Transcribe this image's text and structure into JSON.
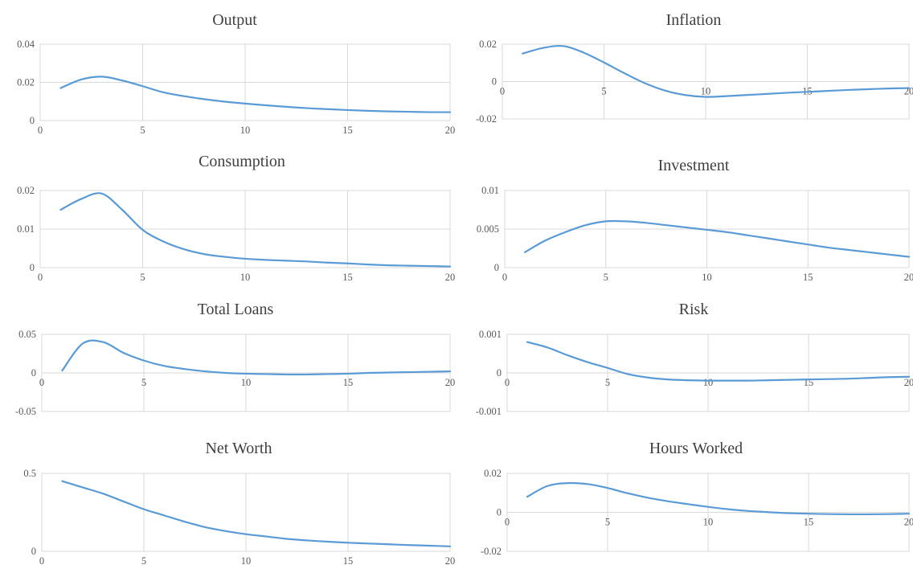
{
  "chart_data": [
    {
      "type": "line",
      "title": "Output",
      "xlim": [
        0,
        20
      ],
      "ylim": [
        0,
        0.04
      ],
      "xticks": [
        "0",
        "5",
        "10",
        "15",
        "20"
      ],
      "yticks": [
        "0",
        "0.02",
        "0.04"
      ],
      "grid": true,
      "x": [
        1,
        2,
        3,
        4,
        5,
        6,
        7,
        8,
        9,
        10,
        11,
        12,
        13,
        14,
        15,
        16,
        17,
        18,
        19,
        20
      ],
      "series": [
        {
          "values": [
            0.017,
            0.0215,
            0.023,
            0.021,
            0.018,
            0.0148,
            0.0128,
            0.0112,
            0.0099,
            0.0089,
            0.008,
            0.0072,
            0.0065,
            0.006,
            0.0055,
            0.0051,
            0.0048,
            0.0046,
            0.0044,
            0.0044
          ]
        }
      ]
    },
    {
      "type": "line",
      "title": "Inflation",
      "xlim": [
        0,
        20
      ],
      "ylim": [
        -0.02,
        0.02
      ],
      "xticks": [
        "0",
        "5",
        "10",
        "15",
        "20"
      ],
      "yticks": [
        "-0.02",
        "0",
        "0.02"
      ],
      "grid": true,
      "x": [
        1,
        2,
        3,
        4,
        5,
        6,
        7,
        8,
        9,
        10,
        11,
        12,
        13,
        14,
        15,
        16,
        17,
        18,
        19,
        20
      ],
      "series": [
        {
          "values": [
            0.015,
            0.018,
            0.019,
            0.0155,
            0.0102,
            0.0045,
            -0.0008,
            -0.0048,
            -0.0072,
            -0.0082,
            -0.0078,
            -0.0072,
            -0.0066,
            -0.006,
            -0.0055,
            -0.005,
            -0.0045,
            -0.0041,
            -0.0037,
            -0.0035
          ]
        }
      ]
    },
    {
      "type": "line",
      "title": "Consumption",
      "xlim": [
        0,
        20
      ],
      "ylim": [
        0,
        0.02
      ],
      "xticks": [
        "0",
        "5",
        "10",
        "15",
        "20"
      ],
      "yticks": [
        "0",
        "0.01",
        "0.02"
      ],
      "grid": true,
      "x": [
        1,
        2,
        3,
        4,
        5,
        6,
        7,
        8,
        9,
        10,
        11,
        12,
        13,
        14,
        15,
        16,
        17,
        18,
        19,
        20
      ],
      "series": [
        {
          "values": [
            0.015,
            0.0178,
            0.0192,
            0.015,
            0.0098,
            0.0068,
            0.0048,
            0.0035,
            0.0028,
            0.0023,
            0.002,
            0.0018,
            0.0016,
            0.0013,
            0.0011,
            0.0008,
            0.0006,
            0.0005,
            0.0004,
            0.0003
          ]
        }
      ]
    },
    {
      "type": "line",
      "title": "Investment",
      "xlim": [
        0,
        20
      ],
      "ylim": [
        0,
        0.01
      ],
      "xticks": [
        "0",
        "5",
        "10",
        "15",
        "20"
      ],
      "yticks": [
        "0",
        "0.005",
        "0.01"
      ],
      "grid": true,
      "x": [
        1,
        2,
        3,
        4,
        5,
        6,
        7,
        8,
        9,
        10,
        11,
        12,
        13,
        14,
        15,
        16,
        17,
        18,
        19,
        20
      ],
      "series": [
        {
          "values": [
            0.002,
            0.0035,
            0.0046,
            0.0055,
            0.006,
            0.006,
            0.0058,
            0.0055,
            0.0052,
            0.0049,
            0.0046,
            0.0042,
            0.0038,
            0.0034,
            0.003,
            0.0026,
            0.0023,
            0.002,
            0.0017,
            0.0014
          ]
        }
      ]
    },
    {
      "type": "line",
      "title": "Total Loans",
      "xlim": [
        0,
        20
      ],
      "ylim": [
        -0.05,
        0.05
      ],
      "xticks": [
        "0",
        "5",
        "10",
        "15",
        "20"
      ],
      "yticks": [
        "-0.05",
        "0",
        "0.05"
      ],
      "grid": true,
      "x": [
        1,
        2,
        3,
        4,
        5,
        6,
        7,
        8,
        9,
        10,
        11,
        12,
        13,
        14,
        15,
        16,
        17,
        18,
        19,
        20
      ],
      "series": [
        {
          "values": [
            0.003,
            0.038,
            0.04,
            0.026,
            0.016,
            0.009,
            0.005,
            0.002,
            0.0,
            -0.001,
            -0.0015,
            -0.002,
            -0.002,
            -0.0015,
            -0.001,
            0.0,
            0.0005,
            0.001,
            0.0015,
            0.002
          ]
        }
      ]
    },
    {
      "type": "line",
      "title": "Risk",
      "xlim": [
        0,
        20
      ],
      "ylim": [
        -0.001,
        0.001
      ],
      "xticks": [
        "0",
        "5",
        "10",
        "15",
        "20"
      ],
      "yticks": [
        "-0.001",
        "0",
        "0.001"
      ],
      "grid": true,
      "x": [
        1,
        2,
        3,
        4,
        5,
        6,
        7,
        8,
        9,
        10,
        11,
        12,
        13,
        14,
        15,
        16,
        17,
        18,
        19,
        20
      ],
      "series": [
        {
          "values": [
            0.0008,
            0.00066,
            0.00046,
            0.00028,
            0.00013,
            -3e-05,
            -0.00012,
            -0.00017,
            -0.00019,
            -0.0002,
            -0.0002,
            -0.0002,
            -0.00019,
            -0.00018,
            -0.00017,
            -0.00016,
            -0.00015,
            -0.00013,
            -0.00011,
            -0.0001
          ]
        }
      ]
    },
    {
      "type": "line",
      "title": "Net Worth",
      "xlim": [
        0,
        20
      ],
      "ylim": [
        0,
        0.5
      ],
      "xticks": [
        "0",
        "5",
        "10",
        "15",
        "20"
      ],
      "yticks": [
        "0",
        "0.5"
      ],
      "grid": true,
      "x": [
        1,
        2,
        3,
        4,
        5,
        6,
        7,
        8,
        9,
        10,
        11,
        12,
        13,
        14,
        15,
        16,
        17,
        18,
        19,
        20
      ],
      "series": [
        {
          "values": [
            0.45,
            0.41,
            0.37,
            0.32,
            0.27,
            0.23,
            0.19,
            0.155,
            0.13,
            0.11,
            0.095,
            0.08,
            0.07,
            0.062,
            0.055,
            0.05,
            0.045,
            0.04,
            0.036,
            0.032
          ]
        }
      ]
    },
    {
      "type": "line",
      "title": "Hours Worked",
      "xlim": [
        0,
        20
      ],
      "ylim": [
        -0.02,
        0.02
      ],
      "xticks": [
        "0",
        "5",
        "10",
        "15",
        "20"
      ],
      "yticks": [
        "-0.02",
        "0",
        "0.02"
      ],
      "grid": true,
      "x": [
        1,
        2,
        3,
        4,
        5,
        6,
        7,
        8,
        9,
        10,
        11,
        12,
        13,
        14,
        15,
        16,
        17,
        18,
        19,
        20
      ],
      "series": [
        {
          "values": [
            0.008,
            0.0135,
            0.015,
            0.0145,
            0.0125,
            0.0098,
            0.0075,
            0.0057,
            0.0042,
            0.0028,
            0.0016,
            0.0007,
            0.0001,
            -0.0004,
            -0.0007,
            -0.0009,
            -0.001,
            -0.001,
            -0.0009,
            -0.0007
          ]
        }
      ]
    }
  ],
  "colors": {
    "series": "#5b9bd5",
    "grid": "#d9d9d9",
    "text": "#595959",
    "title": "#404040"
  }
}
